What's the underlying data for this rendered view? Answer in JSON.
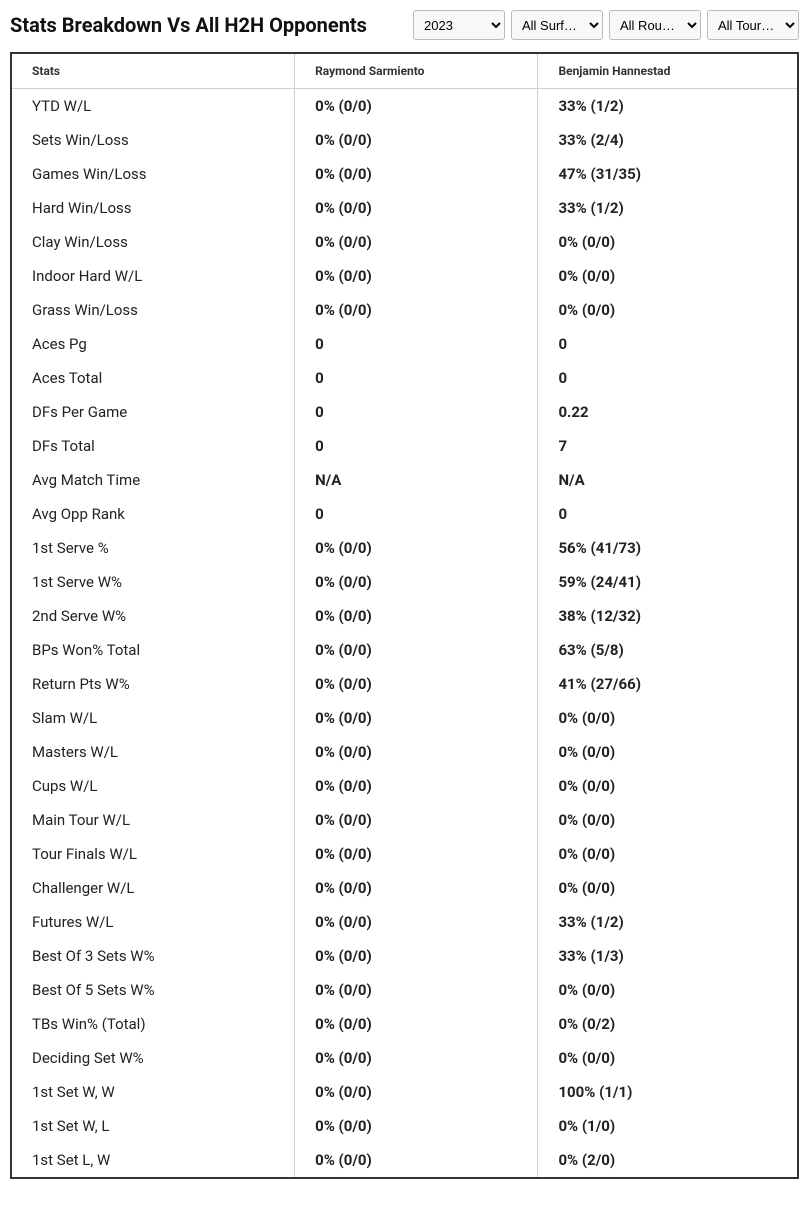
{
  "header": {
    "title": "Stats Breakdown Vs All H2H Opponents"
  },
  "filters": {
    "year": {
      "selected": "2023",
      "options": [
        "2023"
      ]
    },
    "surface": {
      "selected": "All Surf…",
      "options": [
        "All Surf…"
      ]
    },
    "round": {
      "selected": "All Rou…",
      "options": [
        "All Rou…"
      ]
    },
    "tour": {
      "selected": "All Tour…",
      "options": [
        "All Tour…"
      ]
    }
  },
  "table": {
    "columns": {
      "stats": "Stats",
      "p1": "Raymond Sarmiento",
      "p2": "Benjamin Hannestad"
    },
    "rows": [
      {
        "stat": "YTD W/L",
        "p1": "0% (0/0)",
        "p2": "33% (1/2)"
      },
      {
        "stat": "Sets Win/Loss",
        "p1": "0% (0/0)",
        "p2": "33% (2/4)"
      },
      {
        "stat": "Games Win/Loss",
        "p1": "0% (0/0)",
        "p2": "47% (31/35)"
      },
      {
        "stat": "Hard Win/Loss",
        "p1": "0% (0/0)",
        "p2": "33% (1/2)"
      },
      {
        "stat": "Clay Win/Loss",
        "p1": "0% (0/0)",
        "p2": "0% (0/0)"
      },
      {
        "stat": "Indoor Hard W/L",
        "p1": "0% (0/0)",
        "p2": "0% (0/0)"
      },
      {
        "stat": "Grass Win/Loss",
        "p1": "0% (0/0)",
        "p2": "0% (0/0)"
      },
      {
        "stat": "Aces Pg",
        "p1": "0",
        "p2": "0"
      },
      {
        "stat": "Aces Total",
        "p1": "0",
        "p2": "0"
      },
      {
        "stat": "DFs Per Game",
        "p1": "0",
        "p2": "0.22"
      },
      {
        "stat": "DFs Total",
        "p1": "0",
        "p2": "7"
      },
      {
        "stat": "Avg Match Time",
        "p1": "N/A",
        "p2": "N/A"
      },
      {
        "stat": "Avg Opp Rank",
        "p1": "0",
        "p2": "0"
      },
      {
        "stat": "1st Serve %",
        "p1": "0% (0/0)",
        "p2": "56% (41/73)"
      },
      {
        "stat": "1st Serve W%",
        "p1": "0% (0/0)",
        "p2": "59% (24/41)"
      },
      {
        "stat": "2nd Serve W%",
        "p1": "0% (0/0)",
        "p2": "38% (12/32)"
      },
      {
        "stat": "BPs Won% Total",
        "p1": "0% (0/0)",
        "p2": "63% (5/8)"
      },
      {
        "stat": "Return Pts W%",
        "p1": "0% (0/0)",
        "p2": "41% (27/66)"
      },
      {
        "stat": "Slam W/L",
        "p1": "0% (0/0)",
        "p2": "0% (0/0)"
      },
      {
        "stat": "Masters W/L",
        "p1": "0% (0/0)",
        "p2": "0% (0/0)"
      },
      {
        "stat": "Cups W/L",
        "p1": "0% (0/0)",
        "p2": "0% (0/0)"
      },
      {
        "stat": "Main Tour W/L",
        "p1": "0% (0/0)",
        "p2": "0% (0/0)"
      },
      {
        "stat": "Tour Finals W/L",
        "p1": "0% (0/0)",
        "p2": "0% (0/0)"
      },
      {
        "stat": "Challenger W/L",
        "p1": "0% (0/0)",
        "p2": "0% (0/0)"
      },
      {
        "stat": "Futures W/L",
        "p1": "0% (0/0)",
        "p2": "33% (1/2)"
      },
      {
        "stat": "Best Of 3 Sets W%",
        "p1": "0% (0/0)",
        "p2": "33% (1/3)"
      },
      {
        "stat": "Best Of 5 Sets W%",
        "p1": "0% (0/0)",
        "p2": "0% (0/0)"
      },
      {
        "stat": "TBs Win% (Total)",
        "p1": "0% (0/0)",
        "p2": "0% (0/2)"
      },
      {
        "stat": "Deciding Set W%",
        "p1": "0% (0/0)",
        "p2": "0% (0/0)"
      },
      {
        "stat": "1st Set W, W",
        "p1": "0% (0/0)",
        "p2": "100% (1/1)"
      },
      {
        "stat": "1st Set W, L",
        "p1": "0% (0/0)",
        "p2": "0% (1/0)"
      },
      {
        "stat": "1st Set L, W",
        "p1": "0% (0/0)",
        "p2": "0% (2/0)"
      }
    ]
  },
  "style": {
    "title_fontsize": 20,
    "header_fontsize": 12,
    "cell_fontsize": 15,
    "border_color": "#333333",
    "divider_color": "#cfcfcf",
    "bg_color": "#ffffff",
    "text_color": "#222222"
  }
}
